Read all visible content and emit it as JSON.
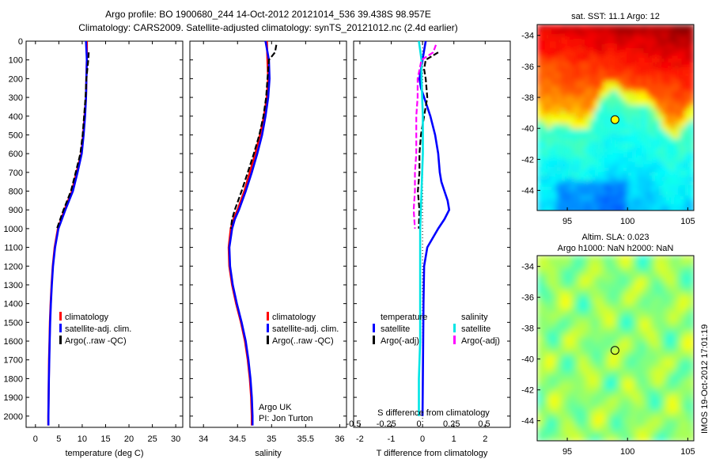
{
  "header": {
    "title_line1": "Argo profile: BO 1900680_244 14-Oct-2012 20121014_536 39.438S 98.957E",
    "title_line2": "Climatology: CARS2009. Satellite-adjusted climatology: synTS_20121012.nc (2.4d earlier)"
  },
  "colors": {
    "climatology": "#ff0000",
    "satellite": "#0000ff",
    "argo": "#000000",
    "satellite_salinity": "#00e5e5",
    "argo_salinity": "#ff00ff"
  },
  "depth_axis": {
    "ticks": [
      "0",
      "100",
      "200",
      "300",
      "400",
      "500",
      "600",
      "700",
      "800",
      "900",
      "1000",
      "1100",
      "1200",
      "1300",
      "1400",
      "1500",
      "1600",
      "1700",
      "1800",
      "1900",
      "2000"
    ]
  },
  "legend": {
    "climatology": "climatology",
    "satellite_adj": "satellite-adj. clim.",
    "argo_raw": "Argo(..raw -QC)",
    "temperature_head": "temperature",
    "salinity_head": "salinity",
    "satellite": "satellite",
    "argo_adj": "Argo(-adj)"
  },
  "annotation": {
    "line1": "Argo UK",
    "line2": "PI: Jon Turton"
  },
  "maps": {
    "sst_title": "sat. SST: 11.1 Argo: 12",
    "sla_title_line1": "Altim. SLA: 0.023",
    "sla_title_line2": "Argo h1000: NaN h2000: NaN",
    "lat_ticks": [
      "-34",
      "-36",
      "-38",
      "-40",
      "-42",
      "-44"
    ],
    "lon_ticks": [
      "95",
      "100",
      "105"
    ],
    "float_lon": 98.957,
    "float_lat": -39.438
  },
  "side_text": "IMOS 19-Oct-2012 17:01:19",
  "chart_data": [
    {
      "type": "line",
      "name": "temperature-panel",
      "xlabel": "temperature (deg C)",
      "ylabel": "",
      "xlim": [
        -2,
        31.5
      ],
      "ylim": [
        2060,
        0
      ],
      "xticks": [
        "0",
        "5",
        "10",
        "15",
        "20",
        "25",
        "30"
      ],
      "series": [
        {
          "name": "climatology",
          "color": "#ff0000",
          "depth": [
            0,
            100,
            200,
            300,
            400,
            500,
            600,
            700,
            800,
            900,
            1000,
            1100,
            1200,
            1300,
            1400,
            1500,
            1600,
            1700,
            1800,
            1900,
            2000,
            2050
          ],
          "values": [
            11.0,
            11.0,
            10.9,
            10.8,
            10.5,
            10.2,
            9.8,
            8.8,
            7.8,
            6.2,
            4.8,
            4.1,
            3.7,
            3.45,
            3.25,
            3.1,
            3.0,
            2.9,
            2.85,
            2.8,
            2.75,
            2.75
          ]
        },
        {
          "name": "satellite-adj. clim.",
          "color": "#0000ff",
          "depth": [
            0,
            100,
            200,
            300,
            400,
            500,
            600,
            700,
            800,
            900,
            1000,
            1100,
            1200,
            1300,
            1400,
            1500,
            1600,
            1700,
            1800,
            1900,
            2000,
            2050
          ],
          "values": [
            10.8,
            11.0,
            10.9,
            10.8,
            10.6,
            10.3,
            9.9,
            9.0,
            8.0,
            6.4,
            4.9,
            4.2,
            3.75,
            3.5,
            3.3,
            3.15,
            3.05,
            2.95,
            2.88,
            2.82,
            2.77,
            2.77
          ]
        },
        {
          "name": "Argo(..raw -QC)",
          "color": "#000000",
          "dashed": true,
          "depth": [
            60,
            100,
            200,
            300,
            400,
            500,
            600,
            700,
            800,
            900,
            1000
          ],
          "values": [
            11.4,
            11.3,
            10.9,
            10.7,
            10.4,
            10.1,
            9.6,
            8.6,
            7.6,
            6.0,
            4.6
          ]
        }
      ]
    },
    {
      "type": "line",
      "name": "salinity-panel",
      "xlabel": "salinity",
      "ylabel": "",
      "xlim": [
        33.8,
        36.1
      ],
      "ylim": [
        2060,
        0
      ],
      "xticks": [
        "34",
        "34.5",
        "35",
        "35.5",
        "36"
      ],
      "series": [
        {
          "name": "climatology",
          "color": "#ff0000",
          "depth": [
            0,
            100,
            200,
            300,
            400,
            500,
            600,
            700,
            800,
            900,
            950,
            1000,
            1100,
            1200,
            1300,
            1400,
            1500,
            1600,
            1700,
            1800,
            1900,
            2000,
            2050
          ],
          "values": [
            34.93,
            34.94,
            34.95,
            34.93,
            34.89,
            34.83,
            34.76,
            34.68,
            34.6,
            34.5,
            34.44,
            34.4,
            34.37,
            34.38,
            34.42,
            34.48,
            34.55,
            34.61,
            34.65,
            34.68,
            34.7,
            34.71,
            34.71
          ]
        },
        {
          "name": "satellite-adj. clim.",
          "color": "#0000ff",
          "depth": [
            0,
            100,
            200,
            300,
            400,
            500,
            600,
            700,
            800,
            900,
            950,
            1000,
            1100,
            1200,
            1300,
            1400,
            1500,
            1600,
            1700,
            1800,
            1900,
            2000,
            2050
          ],
          "values": [
            34.91,
            34.96,
            34.97,
            34.95,
            34.91,
            34.86,
            34.79,
            34.71,
            34.62,
            34.52,
            34.46,
            34.42,
            34.38,
            34.39,
            34.43,
            34.49,
            34.56,
            34.62,
            34.66,
            34.69,
            34.71,
            34.72,
            34.72
          ]
        },
        {
          "name": "Argo(..raw -QC)",
          "color": "#000000",
          "dashed": true,
          "depth": [
            20,
            60,
            100,
            200,
            300,
            400,
            500,
            600,
            700,
            800,
            900,
            950,
            1000
          ],
          "values": [
            35.07,
            35.05,
            34.96,
            34.94,
            34.92,
            34.88,
            34.82,
            34.74,
            34.65,
            34.56,
            34.46,
            34.42,
            34.4
          ]
        }
      ]
    },
    {
      "type": "line",
      "name": "difference-panel",
      "xlabel": "T difference from climatology",
      "x2label": "S difference from climatology",
      "xlim": [
        -2.2,
        2.8
      ],
      "x2lim": [
        -0.5,
        0.7
      ],
      "ylim": [
        2060,
        0
      ],
      "xticks": [
        "-2",
        "-1",
        "0",
        "1",
        "2"
      ],
      "x2ticks": [
        "-0.5",
        "-0.25",
        "0",
        "0.25",
        "0.5"
      ],
      "series": [
        {
          "name": "temperature satellite",
          "color": "#0000ff",
          "axis": "T",
          "depth": [
            0,
            50,
            100,
            150,
            200,
            250,
            300,
            400,
            500,
            600,
            700,
            750,
            800,
            850,
            900,
            950,
            1000,
            1100,
            1200,
            1400,
            1600,
            1800,
            2000
          ],
          "values": [
            0.1,
            0.05,
            0.0,
            -0.05,
            -0.1,
            -0.05,
            0.05,
            0.25,
            0.4,
            0.5,
            0.55,
            0.6,
            0.7,
            0.8,
            0.85,
            0.7,
            0.5,
            0.15,
            0.05,
            0.03,
            0.02,
            0.01,
            0.0
          ]
        },
        {
          "name": "temperature Argo(-adj)",
          "color": "#000000",
          "axis": "T",
          "dashed": true,
          "depth": [
            60,
            100,
            150,
            200,
            300,
            400,
            500,
            600,
            700,
            800,
            900,
            1000
          ],
          "values": [
            0.5,
            0.1,
            0.05,
            0.1,
            0.15,
            0.05,
            -0.05,
            -0.1,
            -0.1,
            -0.15,
            -0.1,
            -0.12
          ]
        },
        {
          "name": "salinity satellite",
          "color": "#00e5e5",
          "axis": "S",
          "depth": [
            0,
            100,
            200,
            400,
            600,
            800,
            1000,
            1200,
            1400,
            1600,
            1800,
            2000
          ],
          "values": [
            0.0,
            0.02,
            0.02,
            0.03,
            0.03,
            0.02,
            0.01,
            0.01,
            0.01,
            0.01,
            0.0,
            0.0
          ]
        },
        {
          "name": "salinity Argo(-adj)",
          "color": "#ff00ff",
          "axis": "S",
          "dashed": true,
          "depth": [
            20,
            60,
            100,
            200,
            300,
            400,
            500,
            600,
            700,
            800,
            900,
            1000
          ],
          "values": [
            0.13,
            0.11,
            0.02,
            -0.01,
            -0.01,
            -0.02,
            -0.02,
            -0.02,
            -0.03,
            -0.03,
            -0.04,
            -0.03
          ]
        }
      ]
    },
    {
      "type": "heatmap",
      "name": "sst-map",
      "title": "sat. SST: 11.1 Argo: 12",
      "xlim": [
        92.5,
        105.5
      ],
      "ylim": [
        -45.3,
        -33.3
      ],
      "colormap": "jet"
    },
    {
      "type": "heatmap",
      "name": "sla-map",
      "title": "Altim. SLA: 0.023",
      "xlim": [
        92.5,
        105.5
      ],
      "ylim": [
        -45.3,
        -33.3
      ],
      "colormap": "jet"
    }
  ]
}
